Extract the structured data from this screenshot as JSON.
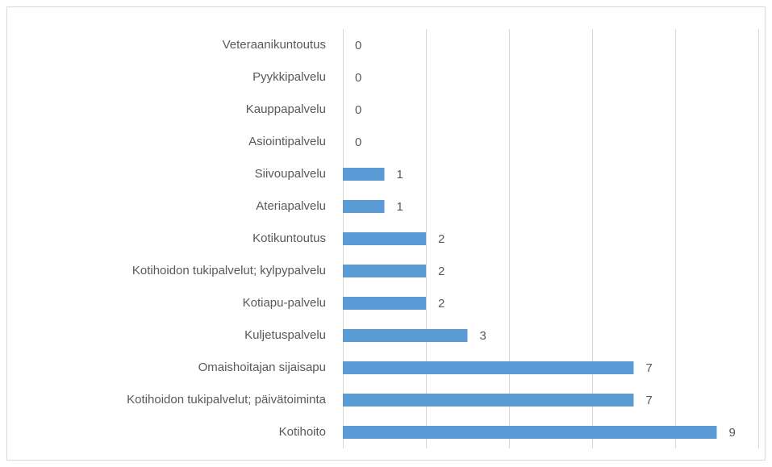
{
  "chart_data": {
    "type": "bar",
    "orientation": "horizontal",
    "categories": [
      "Veteraanikuntoutus",
      "Pyykkipalvelu",
      "Kauppapalvelu",
      "Asiointipalvelu",
      "Siivoupalvelu",
      "Ateriapalvelu",
      "Kotikuntoutus",
      "Kotihoidon tukipalvelut; kylpypalvelu",
      "Kotiapu-palvelu",
      "Kuljetuspalvelu",
      "Omaishoitajan sijaisapu",
      "Kotihoidon tukipalvelut; päivätoiminta",
      "Kotihoito"
    ],
    "values": [
      0,
      0,
      0,
      0,
      1,
      1,
      2,
      2,
      2,
      3,
      7,
      7,
      9
    ],
    "color": "#5b9bd5",
    "xlim": [
      0,
      10
    ],
    "xticks": [
      0,
      2,
      4,
      6,
      8,
      10
    ],
    "grid": true
  }
}
